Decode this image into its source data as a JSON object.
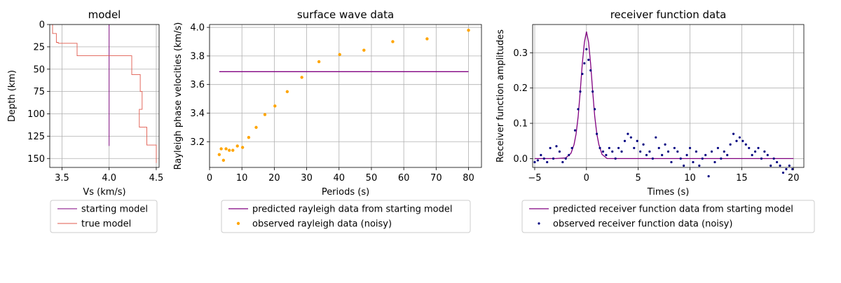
{
  "chart_data": [
    {
      "type": "line",
      "title": "model",
      "xlabel": "Vs (km/s)",
      "ylabel": "Depth (km)",
      "xlim": [
        3.37,
        4.53
      ],
      "ylim": [
        0,
        160
      ],
      "y_inverted": true,
      "xticks": [
        "3.5",
        "4.0",
        "4.5"
      ],
      "yticks": [
        "0",
        "25",
        "50",
        "75",
        "100",
        "125",
        "150"
      ],
      "grid": true,
      "legend": {
        "placement": "below"
      },
      "series": [
        {
          "name": "starting model",
          "color": "#800080",
          "x": [
            4.0,
            4.0
          ],
          "y": [
            0,
            136
          ]
        },
        {
          "name": "true model",
          "color": "#e05a4e",
          "x": [
            3.4,
            3.4,
            3.44,
            3.44,
            3.46,
            3.46,
            3.66,
            3.66,
            4.24,
            4.24,
            4.33,
            4.33,
            4.35,
            4.35,
            4.32,
            4.32,
            4.4,
            4.4,
            4.5,
            4.5
          ],
          "y": [
            0,
            10,
            10,
            20,
            20,
            21,
            21,
            35,
            35,
            56,
            56,
            75,
            75,
            95,
            95,
            115,
            115,
            135,
            135,
            155
          ]
        }
      ]
    },
    {
      "type": "line",
      "title": "surface wave data",
      "xlabel": "Periods (s)",
      "ylabel": "Rayleigh phase velocities (km/s)",
      "xlim": [
        0,
        84
      ],
      "ylim": [
        3.02,
        4.02
      ],
      "xticks": [
        "0",
        "10",
        "20",
        "30",
        "40",
        "50",
        "60",
        "70",
        "80"
      ],
      "yticks": [
        "3.2",
        "3.4",
        "3.6",
        "3.8",
        "4.0"
      ],
      "grid": true,
      "legend": {
        "placement": "below"
      },
      "series": [
        {
          "name": "predicted rayleigh data from starting model",
          "type": "line",
          "color": "#800080",
          "x": [
            3,
            80
          ],
          "y": [
            3.69,
            3.69
          ]
        },
        {
          "name": "observed rayleigh data (noisy)",
          "type": "scatter",
          "color": "#ffa500",
          "x": [
            3,
            3.6,
            4.3,
            5.1,
            6.1,
            7.2,
            8.6,
            10.2,
            12.1,
            14.4,
            17.1,
            20.2,
            24,
            28.5,
            33.8,
            40.2,
            47.7,
            56.6,
            67.2,
            80
          ],
          "y": [
            3.11,
            3.15,
            3.07,
            3.15,
            3.14,
            3.14,
            3.17,
            3.16,
            3.23,
            3.3,
            3.39,
            3.45,
            3.55,
            3.65,
            3.76,
            3.81,
            3.84,
            3.9,
            3.92,
            3.98
          ]
        }
      ]
    },
    {
      "type": "line",
      "title": "receiver function data",
      "xlabel": "Times (s)",
      "ylabel": "Receiver function amplitudes",
      "xlim": [
        -5.2,
        21.0
      ],
      "ylim": [
        -0.025,
        0.38
      ],
      "xticks": [
        "−5",
        "0",
        "5",
        "10",
        "15",
        "20"
      ],
      "yticks": [
        "0.0",
        "0.1",
        "0.2",
        "0.3"
      ],
      "grid": true,
      "legend": {
        "placement": "below"
      },
      "series": [
        {
          "name": "predicted receiver function data from starting model",
          "type": "line",
          "color": "#800080",
          "x": [
            -5.0,
            -3.0,
            -2.0,
            -1.5,
            -1.2,
            -1.0,
            -0.8,
            -0.6,
            -0.4,
            -0.2,
            0.0,
            0.2,
            0.4,
            0.6,
            0.8,
            1.0,
            1.2,
            1.5,
            2.0,
            4.0,
            8.0,
            12.0,
            16.0,
            20.0
          ],
          "y": [
            0.0,
            0.0,
            0.002,
            0.015,
            0.04,
            0.07,
            0.12,
            0.19,
            0.27,
            0.33,
            0.36,
            0.33,
            0.27,
            0.19,
            0.12,
            0.07,
            0.04,
            0.012,
            0.0,
            0.0,
            0.0,
            0.0,
            0.0,
            0.0
          ]
        },
        {
          "name": "observed receiver function data (noisy)",
          "type": "scatter",
          "color": "#000080",
          "x": [
            -5.0,
            -4.7,
            -4.4,
            -4.1,
            -3.8,
            -3.5,
            -3.2,
            -2.9,
            -2.6,
            -2.3,
            -2.0,
            -1.7,
            -1.4,
            -1.1,
            -0.8,
            -0.6,
            -0.4,
            -0.2,
            0.0,
            0.2,
            0.4,
            0.6,
            0.8,
            1.0,
            1.3,
            1.6,
            1.9,
            2.2,
            2.5,
            2.8,
            3.1,
            3.4,
            3.7,
            4.0,
            4.3,
            4.6,
            4.9,
            5.2,
            5.5,
            5.8,
            6.1,
            6.4,
            6.7,
            7.0,
            7.3,
            7.6,
            7.9,
            8.2,
            8.5,
            8.8,
            9.1,
            9.4,
            9.7,
            10.0,
            10.3,
            10.6,
            10.9,
            11.2,
            11.5,
            11.8,
            12.1,
            12.4,
            12.7,
            13.0,
            13.3,
            13.6,
            13.9,
            14.2,
            14.5,
            14.8,
            15.1,
            15.4,
            15.7,
            16.0,
            16.3,
            16.6,
            16.9,
            17.2,
            17.5,
            17.8,
            18.1,
            18.4,
            18.7,
            19.0,
            19.3,
            19.6,
            19.9
          ],
          "y": [
            -0.01,
            -0.005,
            0.01,
            0.0,
            -0.01,
            0.03,
            0.0,
            0.035,
            0.02,
            -0.01,
            0.0,
            0.01,
            0.03,
            0.08,
            0.14,
            0.19,
            0.24,
            0.27,
            0.31,
            0.28,
            0.25,
            0.19,
            0.14,
            0.07,
            0.03,
            0.02,
            0.01,
            0.03,
            0.02,
            0.0,
            0.03,
            0.02,
            0.05,
            0.07,
            0.06,
            0.03,
            0.05,
            0.02,
            0.04,
            0.01,
            0.02,
            0.0,
            0.06,
            0.03,
            0.01,
            0.04,
            0.02,
            -0.01,
            0.03,
            0.02,
            0.0,
            -0.02,
            0.01,
            0.03,
            -0.01,
            0.02,
            -0.02,
            0.0,
            0.01,
            -0.05,
            0.02,
            -0.01,
            0.03,
            0.0,
            0.02,
            0.01,
            0.04,
            0.07,
            0.05,
            0.06,
            0.05,
            0.04,
            0.03,
            0.01,
            0.02,
            0.03,
            0.0,
            0.02,
            0.01,
            -0.02,
            0.0,
            -0.01,
            -0.02,
            -0.04,
            -0.03,
            -0.02,
            -0.03
          ]
        }
      ]
    }
  ]
}
